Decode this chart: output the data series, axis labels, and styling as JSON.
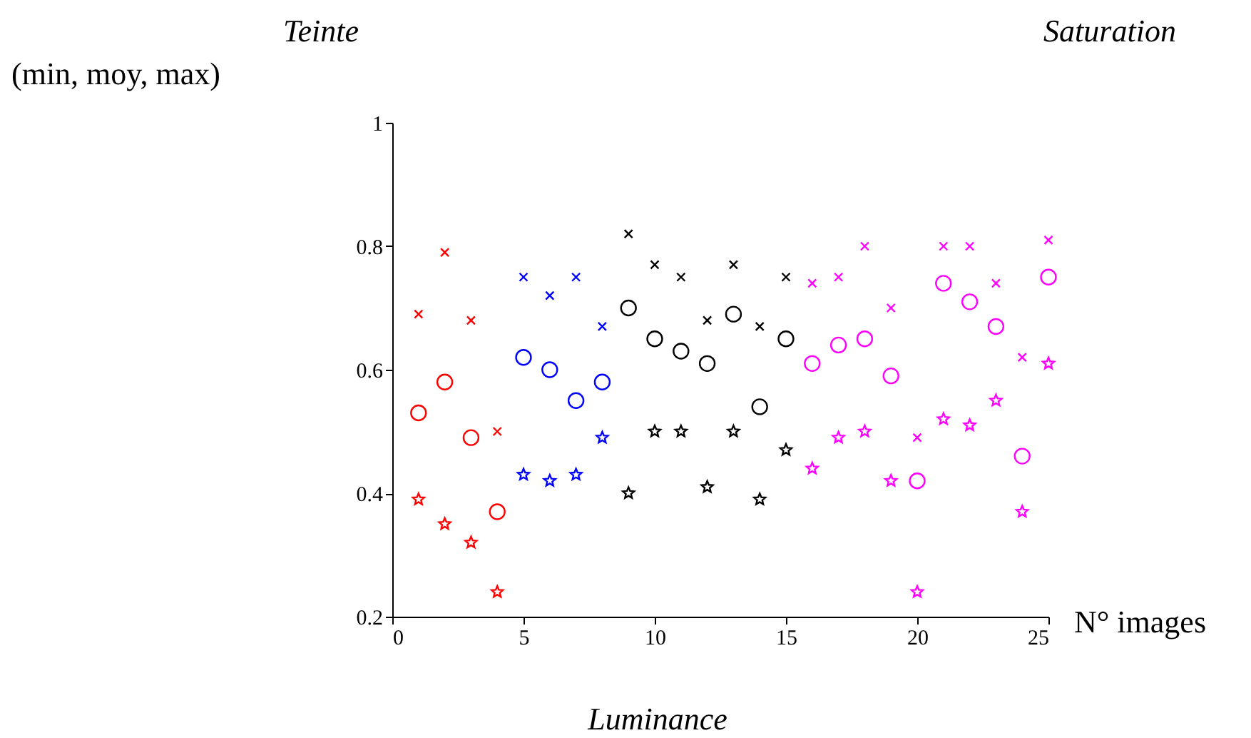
{
  "chart_data": {
    "type": "scatter",
    "xlabel": "N° images",
    "annotations": [
      "Teinte",
      "(min, moy, max)",
      "Saturation",
      "Luminance"
    ],
    "x": [
      1,
      2,
      3,
      4,
      5,
      6,
      7,
      8,
      9,
      10,
      11,
      12,
      13,
      14,
      15,
      16,
      17,
      18,
      19,
      20,
      21,
      22,
      23,
      24,
      25
    ],
    "series": [
      {
        "marker": "cross",
        "values": [
          0.69,
          0.79,
          0.68,
          0.5,
          0.75,
          0.72,
          0.75,
          0.67,
          0.82,
          0.77,
          0.75,
          0.68,
          0.77,
          0.67,
          0.75,
          0.74,
          0.75,
          0.8,
          0.7,
          0.49,
          0.8,
          0.8,
          0.74,
          0.62,
          0.81
        ],
        "colors": [
          "#ff0000",
          "#ff0000",
          "#ff0000",
          "#ff0000",
          "#0000ff",
          "#0000ff",
          "#0000ff",
          "#0000ff",
          "#000000",
          "#000000",
          "#000000",
          "#000000",
          "#000000",
          "#000000",
          "#000000",
          "#ff00ff",
          "#ff00ff",
          "#ff00ff",
          "#ff00ff",
          "#ff00ff",
          "#ff00ff",
          "#ff00ff",
          "#ff00ff",
          "#ff00ff",
          "#ff00ff"
        ]
      },
      {
        "marker": "circle",
        "values": [
          0.53,
          0.58,
          0.49,
          0.37,
          0.62,
          0.6,
          0.55,
          0.58,
          0.7,
          0.65,
          0.63,
          0.61,
          0.69,
          0.54,
          0.65,
          0.61,
          0.64,
          0.65,
          0.59,
          0.42,
          0.74,
          0.71,
          0.67,
          0.46,
          0.75
        ],
        "colors": [
          "#ff0000",
          "#ff0000",
          "#ff0000",
          "#ff0000",
          "#0000ff",
          "#0000ff",
          "#0000ff",
          "#0000ff",
          "#000000",
          "#000000",
          "#000000",
          "#000000",
          "#000000",
          "#000000",
          "#000000",
          "#ff00ff",
          "#ff00ff",
          "#ff00ff",
          "#ff00ff",
          "#ff00ff",
          "#ff00ff",
          "#ff00ff",
          "#ff00ff",
          "#ff00ff",
          "#ff00ff"
        ]
      },
      {
        "marker": "star",
        "values": [
          0.39,
          0.35,
          0.32,
          0.24,
          0.43,
          0.42,
          0.43,
          0.49,
          0.4,
          0.5,
          0.5,
          0.41,
          0.5,
          0.39,
          0.47,
          0.44,
          0.49,
          0.5,
          0.42,
          0.24,
          0.52,
          0.51,
          0.55,
          0.37,
          0.61
        ],
        "colors": [
          "#ff0000",
          "#ff0000",
          "#ff0000",
          "#ff0000",
          "#0000ff",
          "#0000ff",
          "#0000ff",
          "#0000ff",
          "#000000",
          "#000000",
          "#000000",
          "#000000",
          "#000000",
          "#000000",
          "#000000",
          "#ff00ff",
          "#ff00ff",
          "#ff00ff",
          "#ff00ff",
          "#ff00ff",
          "#ff00ff",
          "#ff00ff",
          "#ff00ff",
          "#ff00ff",
          "#ff00ff"
        ]
      }
    ],
    "xlim": [
      0,
      25
    ],
    "ylim": [
      0.2,
      1
    ],
    "xticks": [
      0,
      5,
      10,
      15,
      20,
      25
    ],
    "yticks": [
      0.2,
      0.4,
      0.6,
      0.8,
      1
    ],
    "grid": false,
    "legend": false
  }
}
